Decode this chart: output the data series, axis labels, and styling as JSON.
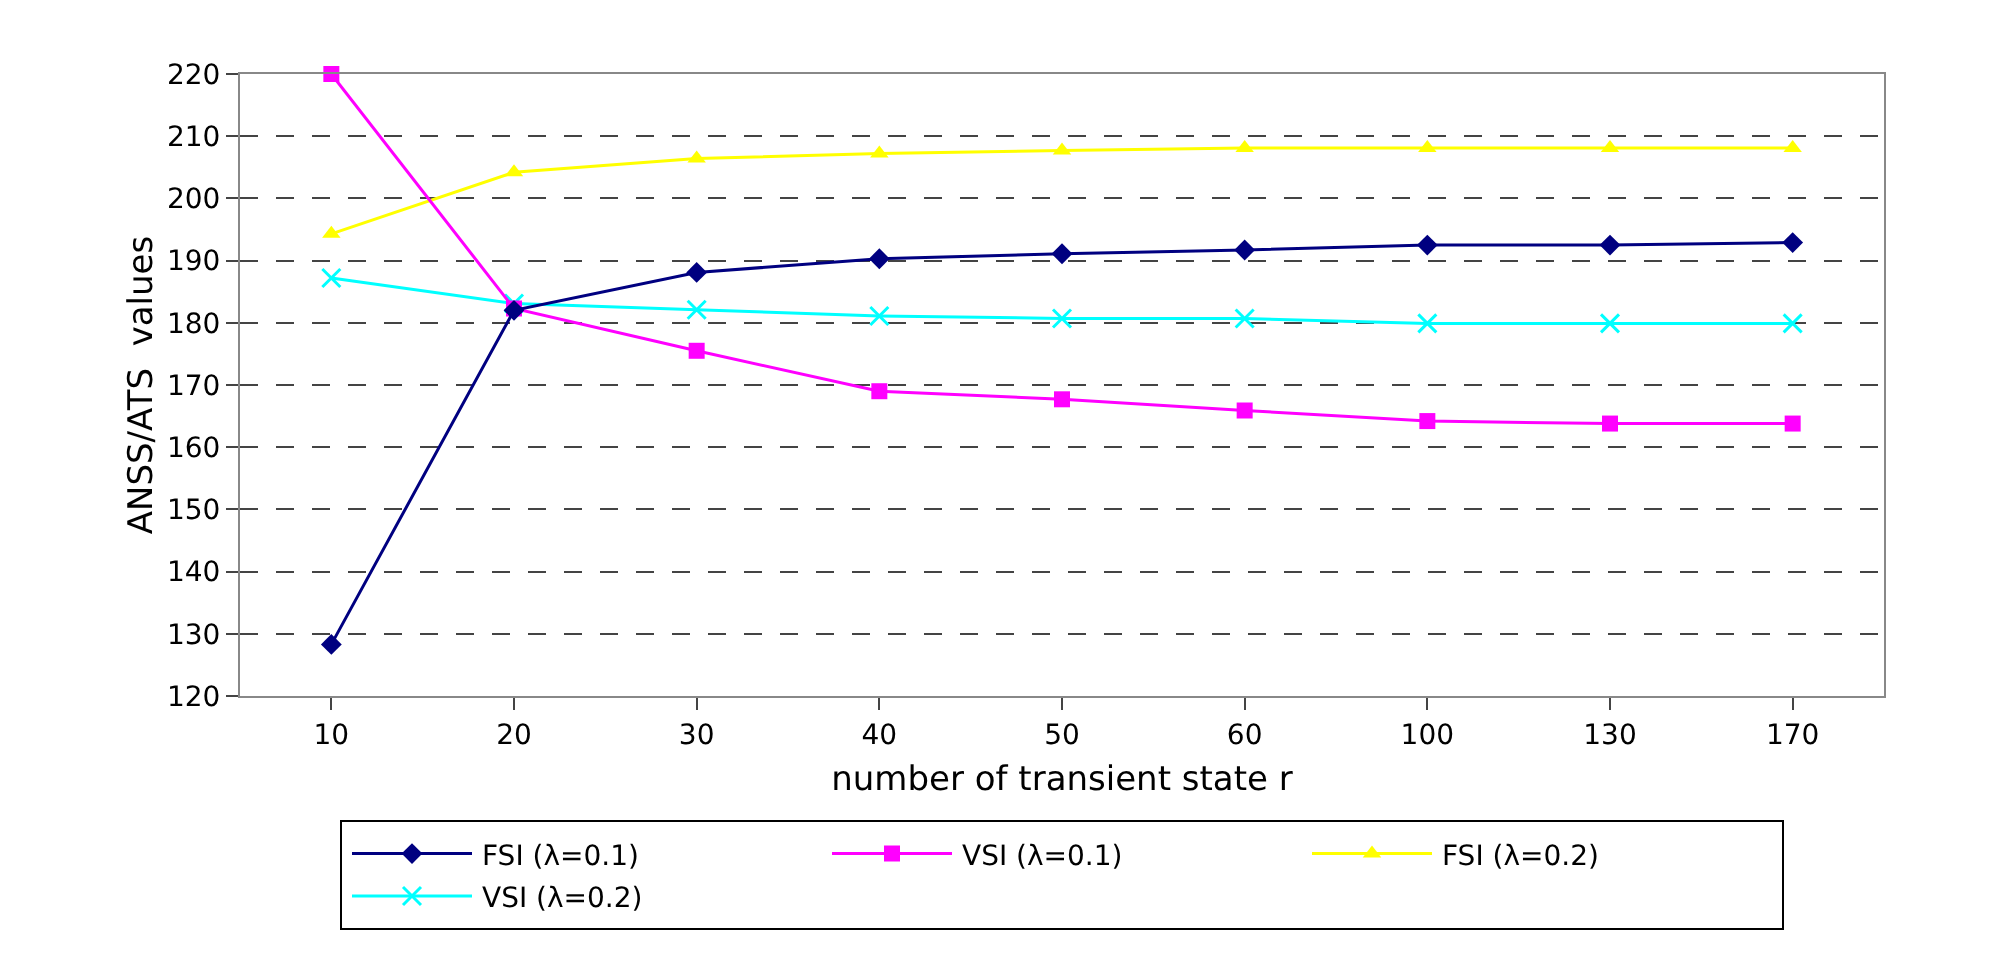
{
  "chart_data": {
    "type": "line",
    "xlabel": "number of transient state r",
    "ylabel": "ANSS/ATS  values",
    "categories": [
      "10",
      "20",
      "30",
      "40",
      "50",
      "60",
      "100",
      "130",
      "170"
    ],
    "ylim": [
      120,
      220
    ],
    "yticks": [
      120,
      130,
      140,
      150,
      160,
      170,
      180,
      190,
      200,
      210,
      220
    ],
    "grid": "y",
    "legend": "bottom",
    "line_style": "solid",
    "series": [
      {
        "name": "FSI (λ=0.1)",
        "color": "#000080",
        "marker": "diamond",
        "values": [
          128.3,
          182,
          188.1,
          190.3,
          191.1,
          191.7,
          192.5,
          192.5,
          192.9
        ]
      },
      {
        "name": "VSI (λ=0.1)",
        "color": "#ff00ff",
        "marker": "square",
        "values": [
          220,
          182.3,
          175.5,
          169,
          167.7,
          165.9,
          164.2,
          163.8,
          163.8
        ]
      },
      {
        "name": "FSI (λ=0.2)",
        "color": "#ffff00",
        "marker": "triangle",
        "values": [
          194.3,
          204.2,
          206.4,
          207.2,
          207.7,
          208.1,
          208.1,
          208.1,
          208.1
        ]
      },
      {
        "name": "VSI (λ=0.2)",
        "color": "#00ffff",
        "marker": "cross",
        "values": [
          187.2,
          183.1,
          182.1,
          181.1,
          180.7,
          180.7,
          179.9,
          179.9,
          179.9
        ]
      }
    ]
  }
}
